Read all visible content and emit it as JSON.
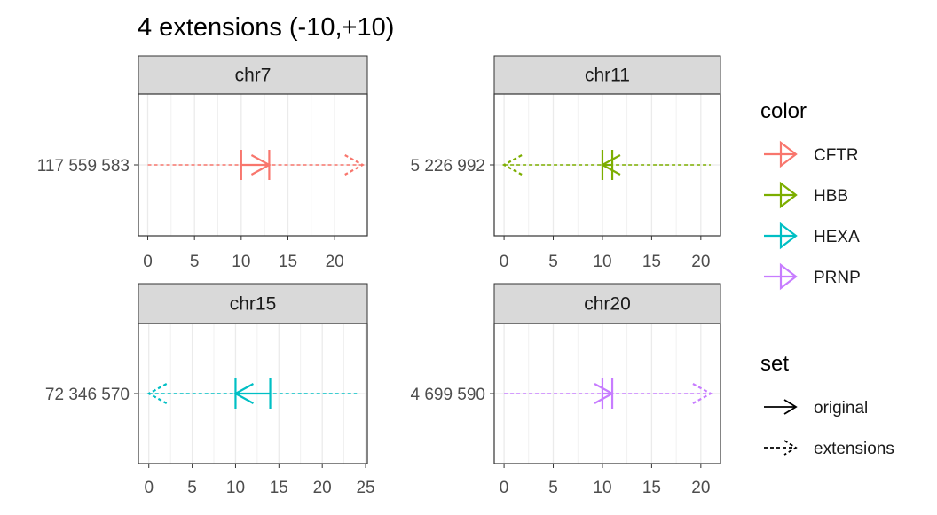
{
  "chart_data": {
    "type": "faceted_range_arrows",
    "title": "4 extensions (-10,+10)",
    "facets": [
      {
        "strip": "chr7",
        "y_label": "117 559 583",
        "color_key": "CFTR",
        "xlim": [
          -1,
          23.5
        ],
        "x_ticks": [
          0,
          5,
          10,
          15,
          20
        ],
        "original": {
          "start": 10,
          "end": 13,
          "direction": "right"
        },
        "extensions": {
          "start": 0,
          "end": 23,
          "direction": "right"
        }
      },
      {
        "strip": "chr11",
        "y_label": "5 226 992",
        "color_key": "HBB",
        "xlim": [
          -1,
          22
        ],
        "x_ticks": [
          0,
          5,
          10,
          15,
          20
        ],
        "original": {
          "start": 10,
          "end": 11,
          "direction": "left"
        },
        "extensions": {
          "start": 0,
          "end": 21,
          "direction": "left"
        }
      },
      {
        "strip": "chr15",
        "y_label": "72 346 570",
        "color_key": "HEXA",
        "xlim": [
          -1.2,
          25.2
        ],
        "x_ticks": [
          0,
          5,
          10,
          15,
          20,
          25
        ],
        "original": {
          "start": 10,
          "end": 14,
          "direction": "left"
        },
        "extensions": {
          "start": 0,
          "end": 24,
          "direction": "left"
        }
      },
      {
        "strip": "chr20",
        "y_label": "4 699 590",
        "color_key": "PRNP",
        "xlim": [
          -1,
          22
        ],
        "x_ticks": [
          0,
          5,
          10,
          15,
          20
        ],
        "original": {
          "start": 10,
          "end": 11,
          "direction": "right"
        },
        "extensions": {
          "start": 0,
          "end": 21,
          "direction": "right"
        }
      }
    ],
    "legend": {
      "placement": "right",
      "color": {
        "title": "color",
        "items": [
          {
            "label": "CFTR",
            "color": "#F8766D"
          },
          {
            "label": "HBB",
            "color": "#7CAE00"
          },
          {
            "label": "HEXA",
            "color": "#00BFC4"
          },
          {
            "label": "PRNP",
            "color": "#C77CFF"
          }
        ]
      },
      "set": {
        "title": "set",
        "items": [
          {
            "label": "original",
            "style": "solid"
          },
          {
            "label": "extensions",
            "style": "dashed"
          }
        ]
      }
    },
    "grid": true
  }
}
